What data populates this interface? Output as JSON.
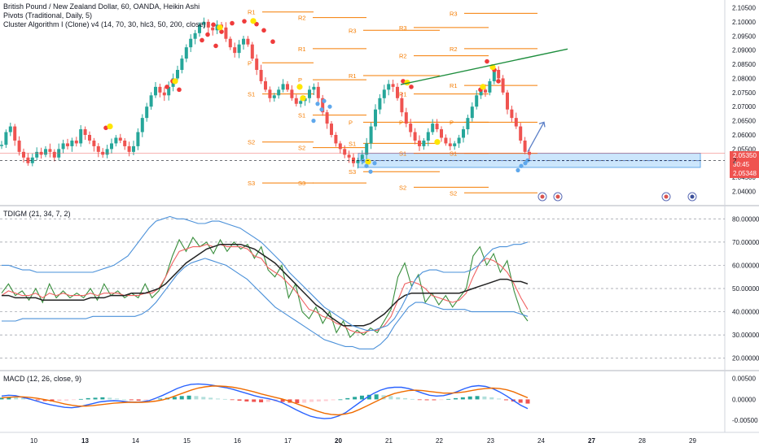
{
  "legend": {
    "symbol_line": "British Pound / New Zealand Dollar, 60, OANDA, Heikin Ashi",
    "pivots_line": "Pivots (Traditional, Daily, 5)",
    "cluster_line": "Cluster Algorithm I (Clone) v4 (14, 70, 30, hlc3, 50, 200, close)"
  },
  "panes": {
    "tdigm_label": "TDIGM (21, 34, 7, 2)",
    "macd_label": "MACD (12, 26, close, 9)"
  },
  "price_badges": {
    "last_price": "2.05350",
    "countdown": "30:45",
    "cursor_price": "2.05348",
    "cursor_prefix": "2"
  },
  "colors": {
    "bull": "#26a69a",
    "bear": "#ef5350",
    "pivot_line": "#f57c00",
    "trendline": "#1e8e3e",
    "arrow": "#5b7fc7",
    "zone_fill": "#bbdefb",
    "tdi_green": "#388e3c",
    "tdi_red": "#f06262",
    "tdi_band": "#4a90d9",
    "tdi_mid": "#222222",
    "macd_line": "#2962ff",
    "signal_line": "#ef6c00",
    "cluster_red": "#ef3b3b",
    "cluster_yellow": "#ffe600",
    "cluster_blue": "#5fa8ec"
  },
  "chart_data": [
    {
      "type": "candlestick",
      "title": "British Pound / New Zealand Dollar, 60, OANDA, Heikin Ashi",
      "x_ticks": [
        "10",
        "13",
        "14",
        "15",
        "16",
        "17",
        "20",
        "21",
        "22",
        "23",
        "24",
        "27",
        "28",
        "29"
      ],
      "y_ticks": [
        "2.10500",
        "2.10000",
        "2.09500",
        "2.09000",
        "2.08500",
        "2.08000",
        "2.07500",
        "2.07000",
        "2.06500",
        "2.06000",
        "2.05500",
        "2.05000",
        "2.04500",
        "2.04000"
      ],
      "ylim": [
        2.037,
        2.106
      ],
      "close_path": [
        2.0565,
        2.061,
        2.063,
        2.058,
        2.054,
        2.052,
        2.05,
        2.052,
        2.054,
        2.053,
        2.055,
        2.054,
        2.052,
        2.055,
        2.057,
        2.056,
        2.058,
        2.057,
        2.062,
        2.06,
        2.058,
        2.056,
        2.054,
        2.053,
        2.055,
        2.057,
        2.059,
        2.058,
        2.056,
        2.054,
        2.056,
        2.061,
        2.066,
        2.07,
        2.074,
        2.077,
        2.075,
        2.074,
        2.077,
        2.08,
        2.083,
        2.087,
        2.091,
        2.094,
        2.096,
        2.099,
        2.1,
        2.098,
        2.097,
        2.099,
        2.098,
        2.094,
        2.091,
        2.089,
        2.092,
        2.094,
        2.092,
        2.087,
        2.083,
        2.079,
        2.076,
        2.073,
        2.074,
        2.076,
        2.078,
        2.076,
        2.073,
        2.071,
        2.072,
        2.073,
        2.076,
        2.077,
        2.073,
        2.068,
        2.064,
        2.06,
        2.057,
        2.055,
        2.053,
        2.052,
        2.05,
        2.051,
        2.053,
        2.057,
        2.063,
        2.069,
        2.073,
        2.076,
        2.078,
        2.077,
        2.073,
        2.068,
        2.064,
        2.061,
        2.058,
        2.056,
        2.058,
        2.061,
        2.064,
        2.062,
        2.059,
        2.057,
        2.056,
        2.057,
        2.059,
        2.062,
        2.066,
        2.07,
        2.074,
        2.076,
        2.075,
        2.079,
        2.083,
        2.08,
        2.075,
        2.069,
        2.066,
        2.063,
        2.058,
        2.054,
        2.053
      ],
      "pivot_levels": [
        {
          "label": "R1",
          "value": 2.1035,
          "day": "15-16"
        },
        {
          "label": "R2",
          "value": 2.1015,
          "day": "16"
        },
        {
          "label": "R1",
          "value": 2.0905,
          "day": "16"
        },
        {
          "label": "P",
          "value": 2.0855,
          "day": "15-16"
        },
        {
          "label": "P",
          "value": 2.0795,
          "day": "16"
        },
        {
          "label": "S1",
          "value": 2.0745,
          "day": "15-16"
        },
        {
          "label": "S1",
          "value": 2.067,
          "day": "16"
        },
        {
          "label": "S2",
          "value": 2.0575,
          "day": "15-16"
        },
        {
          "label": "S2",
          "value": 2.0555,
          "day": "16"
        },
        {
          "label": "S3",
          "value": 2.043,
          "day": "15-16"
        },
        {
          "label": "S3",
          "value": 2.043,
          "day": "16"
        },
        {
          "label": "R3",
          "value": 2.097,
          "day": "20"
        },
        {
          "label": "R1",
          "value": 2.081,
          "day": "20"
        },
        {
          "label": "P",
          "value": 2.0645,
          "day": "20"
        },
        {
          "label": "S1",
          "value": 2.057,
          "day": "20"
        },
        {
          "label": "S3",
          "value": 2.047,
          "day": "20"
        },
        {
          "label": "R3",
          "value": 2.098,
          "day": "21"
        },
        {
          "label": "R2",
          "value": 2.088,
          "day": "21"
        },
        {
          "label": "R1",
          "value": 2.0745,
          "day": "21"
        },
        {
          "label": "P",
          "value": 2.0645,
          "day": "21"
        },
        {
          "label": "S1",
          "value": 2.0535,
          "day": "21"
        },
        {
          "label": "S2",
          "value": 2.0415,
          "day": "21"
        },
        {
          "label": "R3",
          "value": 2.103,
          "day": "22"
        },
        {
          "label": "R2",
          "value": 2.0905,
          "day": "22"
        },
        {
          "label": "R1",
          "value": 2.0775,
          "day": "22"
        },
        {
          "label": "P",
          "value": 2.0645,
          "day": "22"
        },
        {
          "label": "S1",
          "value": 2.0535,
          "day": "22"
        },
        {
          "label": "S2",
          "value": 2.0395,
          "day": "22"
        }
      ],
      "support_zone": [
        2.0485,
        2.0535
      ],
      "trendline": [
        {
          "day": "21",
          "value": 2.0778
        },
        {
          "day": "24",
          "value": 2.0904
        }
      ],
      "projection_arrow": [
        {
          "value": 2.054
        },
        {
          "value": 2.0645
        }
      ]
    },
    {
      "type": "line",
      "title": "TDIGM (21, 34, 7, 2)",
      "y_ticks": [
        "80.000000",
        "70.000000",
        "60.000000",
        "50.000000",
        "40.000000",
        "30.000000",
        "20.000000"
      ],
      "ylim": [
        15,
        85
      ],
      "series": [
        {
          "values": [
            48,
            52,
            47,
            49,
            45,
            50,
            44,
            52,
            46,
            49,
            46,
            48,
            46,
            50,
            45,
            52,
            47,
            49,
            46,
            48,
            46,
            52,
            46,
            49,
            55,
            64,
            71,
            66,
            72,
            68,
            70,
            65,
            71,
            66,
            70,
            67,
            69,
            63,
            68,
            58,
            55,
            60,
            46,
            52,
            40,
            37,
            42,
            35,
            40,
            31,
            36,
            29,
            32,
            30,
            33,
            31,
            36,
            41,
            55,
            61,
            51,
            56,
            44,
            48,
            43,
            47,
            42,
            46,
            50,
            64,
            68,
            60,
            65,
            57,
            62,
            49,
            40,
            36
          ]
        },
        {
          "values": [
            47,
            49,
            48,
            47,
            47,
            48,
            46,
            48,
            47,
            48,
            47,
            47,
            47,
            48,
            47,
            48,
            48,
            48,
            47,
            47,
            47,
            48,
            48,
            50,
            55,
            61,
            66,
            67,
            68,
            68,
            69,
            68,
            69,
            68,
            68,
            68,
            67,
            64,
            63,
            59,
            57,
            55,
            52,
            49,
            45,
            41,
            40,
            38,
            37,
            35,
            34,
            32,
            31,
            31,
            32,
            32,
            34,
            38,
            45,
            52,
            53,
            52,
            50,
            47,
            46,
            45,
            44,
            45,
            48,
            55,
            61,
            63,
            62,
            60,
            57,
            52,
            46,
            41
          ]
        },
        {
          "values": [
            47,
            47,
            46,
            46,
            46,
            46,
            45,
            45,
            45,
            45,
            45,
            45,
            45,
            46,
            46,
            46,
            47,
            47,
            47,
            48,
            48,
            48,
            49,
            50,
            52,
            55,
            58,
            61,
            63,
            65,
            67,
            68,
            69,
            69,
            69,
            69,
            68,
            67,
            65,
            63,
            61,
            58,
            55,
            52,
            49,
            46,
            43,
            41,
            38,
            36,
            34,
            34,
            34,
            34,
            35,
            37,
            39,
            42,
            45,
            47,
            48,
            48,
            48,
            48,
            48,
            48,
            48,
            48,
            49,
            50,
            51,
            52,
            53,
            54,
            54,
            53,
            53,
            52
          ]
        },
        {
          "values": [
            60,
            60,
            59,
            58,
            58,
            57,
            57,
            57,
            57,
            57,
            57,
            57,
            57,
            57,
            58,
            59,
            60,
            62,
            64,
            68,
            72,
            76,
            79,
            80,
            81,
            80,
            80,
            79,
            78,
            78,
            79,
            79,
            78,
            77,
            76,
            74,
            72,
            70,
            67,
            64,
            61,
            57,
            54,
            51,
            48,
            45,
            42,
            40,
            38,
            36,
            34,
            33,
            32,
            32,
            33,
            34,
            37,
            42,
            48,
            54,
            57,
            58,
            58,
            57,
            57,
            57,
            57,
            58,
            60,
            64,
            67,
            68,
            68,
            69,
            69,
            70
          ]
        },
        {
          "values": [
            36,
            36,
            36,
            37,
            37,
            37,
            37,
            37,
            37,
            37,
            37,
            37,
            37,
            38,
            38,
            38,
            38,
            38,
            38,
            38,
            39,
            41,
            44,
            48,
            52,
            56,
            59,
            61,
            62,
            63,
            62,
            61,
            60,
            58,
            56,
            54,
            51,
            48,
            45,
            42,
            40,
            38,
            36,
            34,
            32,
            30,
            28,
            27,
            26,
            25,
            25,
            24,
            24,
            24,
            26,
            29,
            34,
            38,
            42,
            44,
            44,
            43,
            42,
            41,
            41,
            41,
            41,
            40,
            40,
            40,
            40,
            40,
            40,
            40,
            39,
            38
          ]
        }
      ]
    },
    {
      "type": "bar",
      "title": "MACD (12, 26, close, 9)",
      "y_ticks": [
        "0.00500",
        "0.00000",
        "-0.00500"
      ],
      "ylim": [
        -0.0075,
        0.0065
      ],
      "histogram": [
        0.0004,
        0.0006,
        0.0005,
        0.0003,
        0.0001,
        -0.0002,
        -0.0004,
        -0.0005,
        -0.0004,
        -0.0003,
        -0.0001,
        0.0001,
        0.0003,
        0.0004,
        0.0005,
        0.0004,
        0.0002,
        0.0,
        -0.0002,
        -0.0003,
        -0.0002,
        -0.0001,
        0.0002,
        0.0004,
        0.0006,
        0.0008,
        0.0009,
        0.0008,
        0.0006,
        0.0004,
        0.0002,
        0.0001,
        -0.0001,
        -0.0003,
        -0.0005,
        -0.0006,
        -0.0007,
        -0.0006,
        -0.0005,
        -0.0006,
        -0.0008,
        -0.0009,
        -0.0008,
        -0.0006,
        -0.0005,
        -0.0004,
        -0.0002,
        0.0,
        0.0003,
        0.0006,
        0.0009,
        0.0011,
        0.0012,
        0.001,
        0.0008,
        0.0005,
        0.0003,
        0.0001,
        -0.0001,
        -0.0002,
        -0.0002,
        -0.0001,
        0.0001,
        0.0003,
        0.0005,
        0.0007,
        0.0008,
        0.0007,
        0.0005,
        0.0002,
        -0.0002,
        -0.0005,
        -0.0008,
        -0.001
      ],
      "macd": [
        0.0008,
        0.001,
        0.0009,
        0.0005,
        0.0001,
        -0.0004,
        -0.0009,
        -0.0013,
        -0.0016,
        -0.0019,
        -0.002,
        -0.0018,
        -0.0014,
        -0.001,
        -0.0006,
        -0.0004,
        -0.0003,
        -0.0004,
        -0.0006,
        -0.0007,
        -0.0006,
        -0.0003,
        0.0003,
        0.001,
        0.0018,
        0.0026,
        0.0032,
        0.0036,
        0.0037,
        0.0036,
        0.0034,
        0.0031,
        0.0028,
        0.0024,
        0.0019,
        0.0014,
        0.0009,
        0.0005,
        0.0002,
        -0.0002,
        -0.0008,
        -0.0016,
        -0.0025,
        -0.0033,
        -0.004,
        -0.0044,
        -0.0046,
        -0.0045,
        -0.004,
        -0.0032,
        -0.002,
        -0.0008,
        0.0004,
        0.0014,
        0.0022,
        0.0027,
        0.0029,
        0.0029,
        0.0026,
        0.0021,
        0.0015,
        0.001,
        0.0008,
        0.0009,
        0.0013,
        0.0019,
        0.0026,
        0.0031,
        0.0033,
        0.0031,
        0.0026,
        0.0018,
        0.0008,
        -0.0003,
        -0.0014,
        -0.0022
      ],
      "signal": [
        0.0004,
        0.0005,
        0.0006,
        0.0006,
        0.0005,
        0.0003,
        0.0,
        -0.0003,
        -0.0007,
        -0.0011,
        -0.0014,
        -0.0016,
        -0.0016,
        -0.0015,
        -0.0013,
        -0.0011,
        -0.0009,
        -0.0008,
        -0.0007,
        -0.0007,
        -0.0007,
        -0.0006,
        -0.0004,
        -0.0001,
        0.0004,
        0.001,
        0.0016,
        0.0022,
        0.0027,
        0.003,
        0.0032,
        0.0032,
        0.0031,
        0.0029,
        0.0026,
        0.0022,
        0.0018,
        0.0013,
        0.0009,
        0.0005,
        0.0001,
        -0.0004,
        -0.001,
        -0.0016,
        -0.0022,
        -0.0028,
        -0.0033,
        -0.0036,
        -0.0037,
        -0.0035,
        -0.0031,
        -0.0024,
        -0.0016,
        -0.0008,
        0.0,
        0.0008,
        0.0014,
        0.0018,
        0.0021,
        0.0022,
        0.0021,
        0.0019,
        0.0017,
        0.0015,
        0.0015,
        0.0016,
        0.0018,
        0.0021,
        0.0024,
        0.0026,
        0.0027,
        0.0026,
        0.0023,
        0.0018,
        0.0011,
        0.0004
      ]
    }
  ]
}
